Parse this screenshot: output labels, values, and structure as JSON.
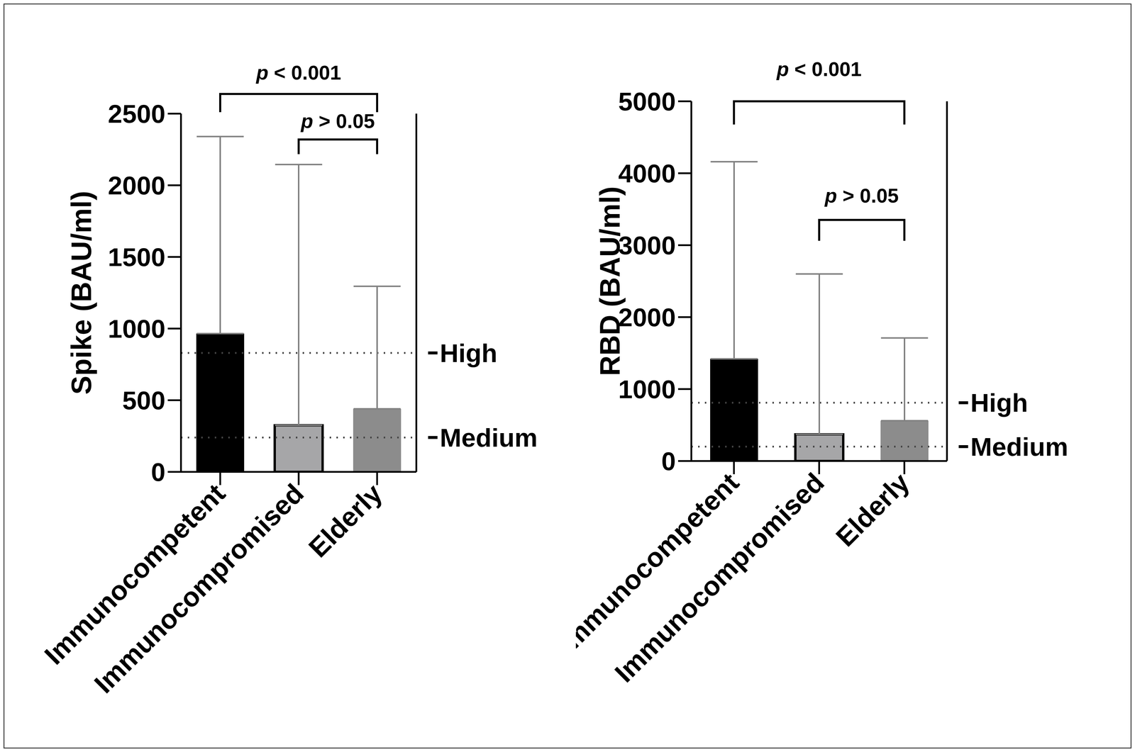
{
  "chart_data": [
    {
      "type": "bar",
      "y_label": "Spike (BAU/ml)",
      "categories": [
        "Immunocompetent",
        "Immunocompromised",
        "Elderly"
      ],
      "values": [
        965,
        325,
        440
      ],
      "errors": [
        1375,
        1820,
        855
      ],
      "colors": [
        "#000000",
        "#a6a6a8",
        "#8c8c8c"
      ],
      "ylim": [
        0,
        2500
      ],
      "yticks": [
        0,
        500,
        1000,
        1500,
        2000,
        2500
      ],
      "grid": false,
      "reference_lines": [
        {
          "label": "High",
          "value": 830
        },
        {
          "label": "Medium",
          "value": 240
        }
      ],
      "comparisons": [
        {
          "from": "Immunocompetent",
          "to": "Elderly",
          "label": "p < 0.001"
        },
        {
          "from": "Immunocompromised",
          "to": "Elderly",
          "label": "p > 0.05"
        }
      ]
    },
    {
      "type": "bar",
      "y_label": "RBD (BAU/ml)",
      "categories": [
        "Immunocompetent",
        "Immunocompromised",
        "Elderly"
      ],
      "values": [
        1420,
        370,
        560
      ],
      "errors": [
        2740,
        2230,
        1150
      ],
      "colors": [
        "#000000",
        "#a6a6a8",
        "#8c8c8c"
      ],
      "ylim": [
        0,
        5000
      ],
      "yticks": [
        0,
        1000,
        2000,
        3000,
        4000,
        5000
      ],
      "grid": false,
      "reference_lines": [
        {
          "label": "High",
          "value": 810
        },
        {
          "label": "Medium",
          "value": 200
        }
      ],
      "comparisons": [
        {
          "from": "Immunocompetent",
          "to": "Elderly",
          "label": "p < 0.001"
        },
        {
          "from": "Immunocompromised",
          "to": "Elderly",
          "label": "p > 0.05"
        }
      ]
    }
  ]
}
